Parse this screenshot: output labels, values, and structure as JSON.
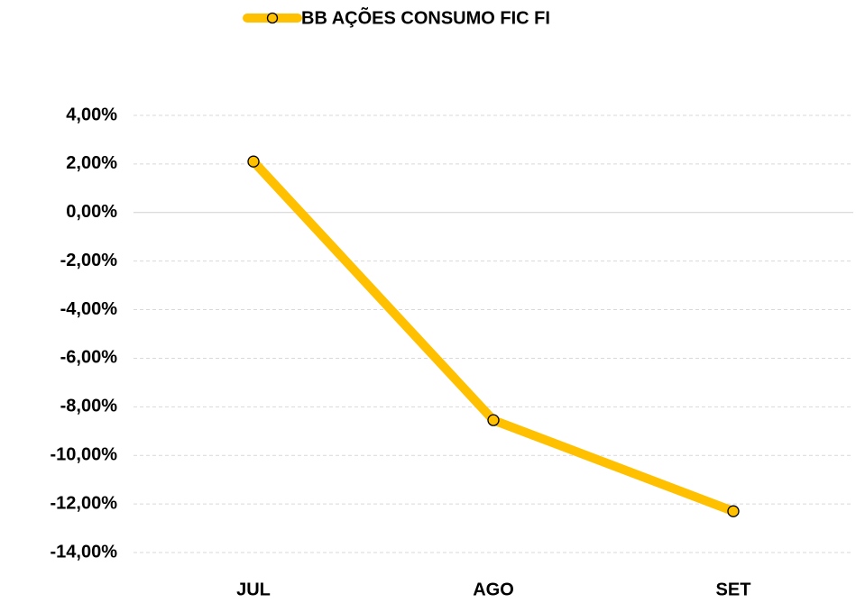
{
  "chart_data": {
    "type": "line",
    "categories": [
      "JUL",
      "AGO",
      "SET"
    ],
    "series": [
      {
        "name": "BB AÇÕES CONSUMO FIC FI",
        "color": "#ffc000",
        "values": [
          2.1,
          -8.55,
          -12.3
        ]
      }
    ],
    "ylim": [
      -14,
      4
    ],
    "yticks": [
      {
        "value": 4,
        "label": "4,00%"
      },
      {
        "value": 2,
        "label": "2,00%"
      },
      {
        "value": 0,
        "label": "0,00%"
      },
      {
        "value": -2,
        "label": "-2,00%"
      },
      {
        "value": -4,
        "label": "-4,00%"
      },
      {
        "value": -6,
        "label": "-6,00%"
      },
      {
        "value": -8,
        "label": "-8,00%"
      },
      {
        "value": -10,
        "label": "-10,00%"
      },
      {
        "value": -12,
        "label": "-12,00%"
      },
      {
        "value": -14,
        "label": "-14,00%"
      }
    ],
    "grid": true,
    "legend": "top"
  }
}
